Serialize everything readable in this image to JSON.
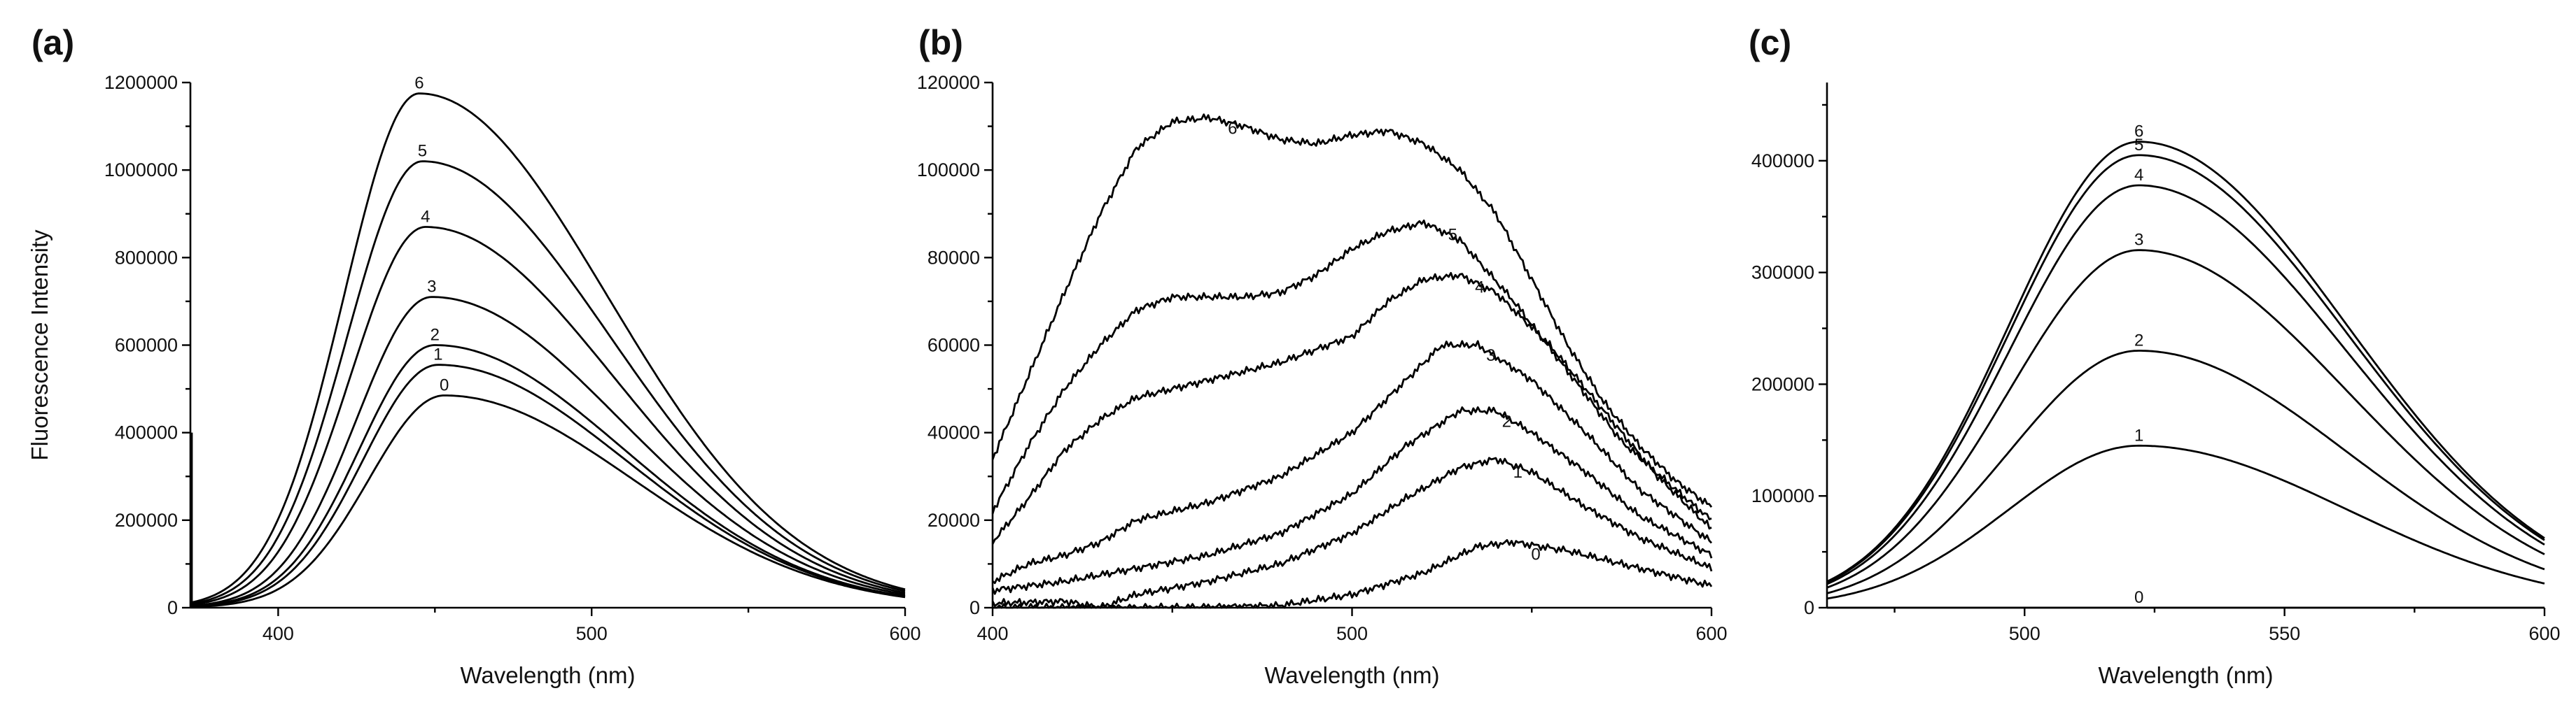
{
  "figure_labels": [
    "(a)",
    "(b)",
    "(c)"
  ],
  "chart_data": [
    {
      "type": "line",
      "panel": "(a)",
      "xlabel": "Wavelength (nm)",
      "ylabel": "Fluorescence Intensity",
      "xlim": [
        372,
        600
      ],
      "ylim": [
        0,
        1200000
      ],
      "xticks": [
        400,
        500,
        600
      ],
      "yticks": [
        0,
        200000,
        400000,
        600000,
        800000,
        1000000,
        1200000
      ],
      "xtick_labels": [
        "400",
        "500",
        "600"
      ],
      "ytick_labels": [
        "0",
        "200000",
        "400000",
        "600000",
        "800000",
        "1000000",
        "1200000"
      ],
      "grid": false,
      "series": [
        {
          "name": "0",
          "peak_x": 453,
          "peak_y": 485000,
          "sigma_left": 24,
          "sigma_right": 60,
          "floor": 0
        },
        {
          "name": "1",
          "peak_x": 451,
          "peak_y": 555000,
          "sigma_left": 24,
          "sigma_right": 60,
          "floor": 0
        },
        {
          "name": "2",
          "peak_x": 450,
          "peak_y": 600000,
          "sigma_left": 24,
          "sigma_right": 60,
          "floor": 0
        },
        {
          "name": "3",
          "peak_x": 449,
          "peak_y": 710000,
          "sigma_left": 24,
          "sigma_right": 60,
          "floor": 0
        },
        {
          "name": "4",
          "peak_x": 447,
          "peak_y": 870000,
          "sigma_left": 24,
          "sigma_right": 60,
          "floor": 0
        },
        {
          "name": "5",
          "peak_x": 446,
          "peak_y": 1020000,
          "sigma_left": 24,
          "sigma_right": 60,
          "floor": 0
        },
        {
          "name": "6",
          "peak_x": 445,
          "peak_y": 1175000,
          "sigma_left": 24,
          "sigma_right": 60,
          "floor": 0
        }
      ]
    },
    {
      "type": "line",
      "panel": "(b)",
      "xlabel": "Wavelength (nm)",
      "ylabel": "",
      "xlim": [
        400,
        600
      ],
      "ylim": [
        0,
        120000
      ],
      "xticks": [
        400,
        500,
        600
      ],
      "yticks": [
        0,
        20000,
        40000,
        60000,
        80000,
        100000,
        120000
      ],
      "xtick_labels": [
        "400",
        "500",
        "600"
      ],
      "ytick_labels": [
        "0",
        "20000",
        "40000",
        "60000",
        "80000",
        "100000",
        "120000"
      ],
      "grid": false,
      "series": [
        {
          "name": "0",
          "points": [
            [
              400,
              0
            ],
            [
              450,
              0
            ],
            [
              480,
              500
            ],
            [
              500,
              3000
            ],
            [
              520,
              8000
            ],
            [
              535,
              14000
            ],
            [
              545,
              15000
            ],
            [
              560,
              13000
            ],
            [
              580,
              9000
            ],
            [
              600,
              5000
            ]
          ]
        },
        {
          "name": "1",
          "points": [
            [
              400,
              1000
            ],
            [
              420,
              1500
            ],
            [
              430,
              0
            ],
            [
              440,
              3000
            ],
            [
              460,
              6000
            ],
            [
              480,
              10000
            ],
            [
              500,
              17000
            ],
            [
              515,
              25000
            ],
            [
              530,
              32000
            ],
            [
              540,
              34000
            ],
            [
              550,
              31000
            ],
            [
              565,
              23000
            ],
            [
              580,
              16000
            ],
            [
              600,
              9000
            ]
          ]
        },
        {
          "name": "2",
          "points": [
            [
              400,
              4000
            ],
            [
              420,
              6000
            ],
            [
              440,
              9000
            ],
            [
              460,
              12000
            ],
            [
              480,
              17000
            ],
            [
              500,
              26000
            ],
            [
              515,
              37000
            ],
            [
              530,
              45000
            ],
            [
              540,
              45000
            ],
            [
              550,
              40000
            ],
            [
              565,
              31000
            ],
            [
              580,
              21000
            ],
            [
              600,
              12000
            ]
          ]
        },
        {
          "name": "3",
          "points": [
            [
              400,
              6000
            ],
            [
              410,
              10000
            ],
            [
              420,
              12000
            ],
            [
              430,
              15000
            ],
            [
              440,
              20000
            ],
            [
              460,
              24000
            ],
            [
              480,
              30000
            ],
            [
              500,
              40000
            ],
            [
              515,
              52000
            ],
            [
              525,
              60000
            ],
            [
              535,
              60000
            ],
            [
              550,
              52000
            ],
            [
              565,
              40000
            ],
            [
              580,
              27000
            ],
            [
              600,
              15000
            ]
          ]
        },
        {
          "name": "4",
          "points": [
            [
              400,
              15000
            ],
            [
              410,
              25000
            ],
            [
              420,
              36000
            ],
            [
              430,
              43000
            ],
            [
              440,
              48000
            ],
            [
              460,
              52000
            ],
            [
              480,
              56000
            ],
            [
              500,
              62000
            ],
            [
              510,
              70000
            ],
            [
              520,
              75000
            ],
            [
              530,
              76000
            ],
            [
              540,
              72000
            ],
            [
              555,
              60000
            ],
            [
              570,
              45000
            ],
            [
              585,
              30000
            ],
            [
              600,
              18000
            ]
          ]
        },
        {
          "name": "5",
          "points": [
            [
              400,
              22000
            ],
            [
              410,
              37000
            ],
            [
              420,
              50000
            ],
            [
              430,
              60000
            ],
            [
              440,
              68000
            ],
            [
              450,
              71000
            ],
            [
              470,
              71000
            ],
            [
              480,
              72000
            ],
            [
              490,
              76000
            ],
            [
              500,
              82000
            ],
            [
              510,
              86000
            ],
            [
              520,
              88000
            ],
            [
              530,
              84000
            ],
            [
              545,
              70000
            ],
            [
              560,
              54000
            ],
            [
              575,
              38000
            ],
            [
              590,
              27000
            ],
            [
              600,
              20000
            ]
          ]
        },
        {
          "name": "6",
          "points": [
            [
              400,
              34000
            ],
            [
              410,
              53000
            ],
            [
              420,
              72000
            ],
            [
              430,
              90000
            ],
            [
              440,
              105000
            ],
            [
              450,
              111000
            ],
            [
              460,
              112000
            ],
            [
              470,
              110000
            ],
            [
              480,
              107000
            ],
            [
              490,
              106000
            ],
            [
              500,
              108000
            ],
            [
              510,
              109000
            ],
            [
              520,
              106000
            ],
            [
              530,
              100000
            ],
            [
              540,
              90000
            ],
            [
              550,
              75000
            ],
            [
              560,
              60000
            ],
            [
              570,
              47000
            ],
            [
              580,
              37000
            ],
            [
              590,
              29000
            ],
            [
              600,
              23000
            ]
          ]
        }
      ]
    },
    {
      "type": "line",
      "panel": "(c)",
      "xlabel": "Wavelength (nm)",
      "ylabel": "",
      "xlim": [
        462,
        600
      ],
      "ylim": [
        0,
        470000
      ],
      "xticks": [
        500,
        550,
        600
      ],
      "yticks": [
        0,
        100000,
        200000,
        300000,
        400000
      ],
      "xtick_labels": [
        "500",
        "550",
        "600"
      ],
      "ytick_labels": [
        "0",
        "100000",
        "200000",
        "300000",
        "400000"
      ],
      "grid": false,
      "series": [
        {
          "name": "0",
          "peak_x": 522,
          "peak_y": 0,
          "sigma_left": 25,
          "sigma_right": 40,
          "floor": 0
        },
        {
          "name": "1",
          "peak_x": 522,
          "peak_y": 145000,
          "sigma_left": 25,
          "sigma_right": 40,
          "floor": 0
        },
        {
          "name": "2",
          "peak_x": 522,
          "peak_y": 230000,
          "sigma_left": 25,
          "sigma_right": 40,
          "floor": 0
        },
        {
          "name": "3",
          "peak_x": 522,
          "peak_y": 320000,
          "sigma_left": 25,
          "sigma_right": 40,
          "floor": 0
        },
        {
          "name": "4",
          "peak_x": 522,
          "peak_y": 378000,
          "sigma_left": 25,
          "sigma_right": 40,
          "floor": 0
        },
        {
          "name": "5",
          "peak_x": 522,
          "peak_y": 405000,
          "sigma_left": 25,
          "sigma_right": 40,
          "floor": 0
        },
        {
          "name": "6",
          "peak_x": 522,
          "peak_y": 417000,
          "sigma_left": 25,
          "sigma_right": 40,
          "floor": 0
        }
      ]
    }
  ]
}
